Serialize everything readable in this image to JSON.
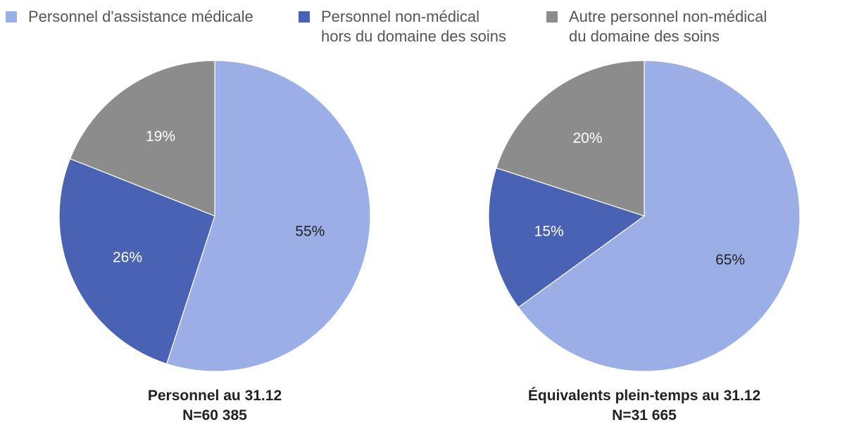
{
  "legend": [
    {
      "lines": [
        "Personnel d'assistance médicale"
      ],
      "color": "#9BAEE6"
    },
    {
      "lines": [
        "Personnel non-médical",
        "hors du domaine des soins"
      ],
      "color": "#4A62B3"
    },
    {
      "lines": [
        "Autre personnel non-médical",
        "du domaine des soins"
      ],
      "color": "#8C8C8C"
    }
  ],
  "chart_data": [
    {
      "type": "pie",
      "title": "Personnel au 31.12",
      "subtitle": "N=60 385",
      "categories": [
        "Personnel d'assistance médicale",
        "Personnel non-médical hors du domaine des soins",
        "Autre personnel non-médical du domaine des soins"
      ],
      "values": [
        55,
        26,
        19
      ],
      "labels": [
        "55%",
        "26%",
        "19%"
      ],
      "colors": [
        "#9BAEE6",
        "#4A62B3",
        "#8C8C8C"
      ],
      "label_colors": [
        "#222222",
        "#ffffff",
        "#ffffff"
      ]
    },
    {
      "type": "pie",
      "title": "Équivalents plein-temps au 31.12",
      "subtitle": "N=31 665",
      "categories": [
        "Personnel d'assistance médicale",
        "Personnel non-médical hors du domaine des soins",
        "Autre personnel non-médical du domaine des soins"
      ],
      "values": [
        65,
        15,
        20
      ],
      "labels": [
        "65%",
        "15%",
        "20%"
      ],
      "colors": [
        "#9BAEE6",
        "#4A62B3",
        "#8C8C8C"
      ],
      "label_colors": [
        "#222222",
        "#ffffff",
        "#ffffff"
      ]
    }
  ]
}
